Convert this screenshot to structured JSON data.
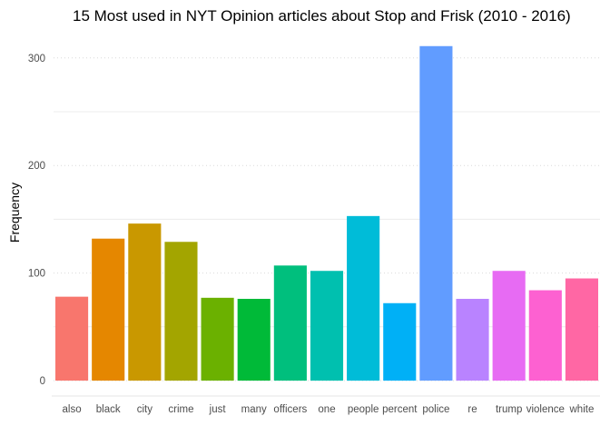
{
  "chart_data": {
    "type": "bar",
    "title": "15 Most used in NYT Opinion articles about Stop and Frisk (2010 - 2016)",
    "xlabel": "",
    "ylabel": "Frequency",
    "ylim": [
      0,
      320
    ],
    "yticks": [
      0,
      100,
      200,
      300
    ],
    "grid": true,
    "legend": "none",
    "categories": [
      "also",
      "black",
      "city",
      "crime",
      "just",
      "many",
      "officers",
      "one",
      "people",
      "percent",
      "police",
      "re",
      "trump",
      "violence",
      "white"
    ],
    "values": [
      78,
      132,
      146,
      129,
      77,
      76,
      107,
      102,
      153,
      72,
      311,
      76,
      102,
      84,
      95
    ],
    "colors": [
      "#F8766D",
      "#E58700",
      "#C99800",
      "#A3A500",
      "#6BB100",
      "#00BA38",
      "#00BF7D",
      "#00C0AF",
      "#00BCD8",
      "#00B0F6",
      "#619CFF",
      "#B983FF",
      "#E76BF3",
      "#FD61D1",
      "#FF67A4"
    ]
  }
}
